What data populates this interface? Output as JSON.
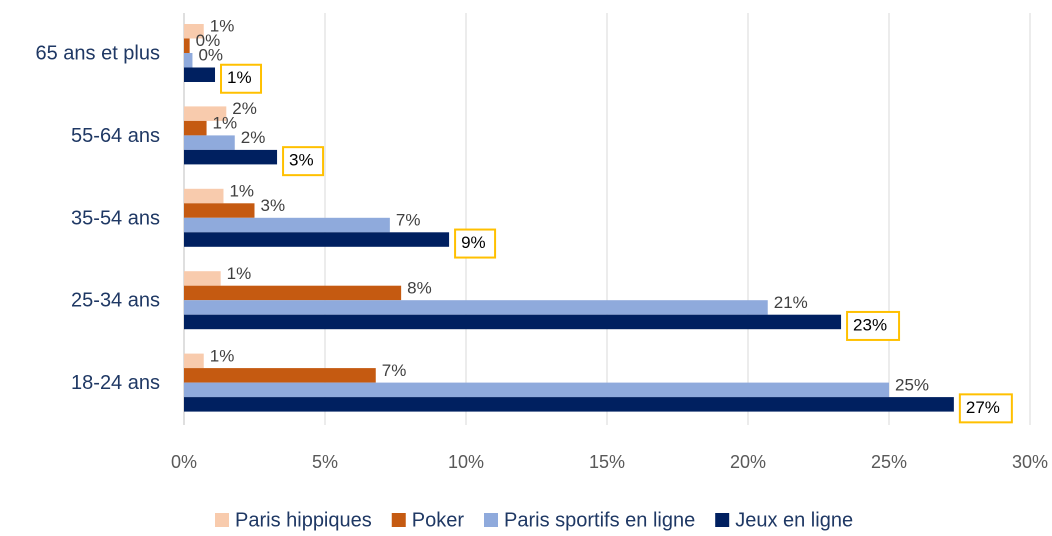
{
  "chart_data": {
    "type": "hbar",
    "categories": [
      "65 ans et plus",
      "55-64 ans",
      "35-54 ans",
      "25-34 ans",
      "18-24 ans"
    ],
    "series": [
      {
        "name": "Paris hippiques",
        "color": "#f8cbad",
        "values": [
          0.7,
          1.5,
          1.4,
          1.3,
          0.7
        ],
        "value_labels": [
          "1%",
          "2%",
          "1%",
          "1%",
          "1%"
        ]
      },
      {
        "name": "Poker",
        "color": "#c55a11",
        "values": [
          0.2,
          0.8,
          2.5,
          7.7,
          6.8
        ],
        "value_labels": [
          "0%",
          "1%",
          "3%",
          "8%",
          "7%"
        ]
      },
      {
        "name": "Paris sportifs en ligne",
        "color": "#8faadc",
        "values": [
          0.3,
          1.8,
          7.3,
          20.7,
          25.0
        ],
        "value_labels": [
          "0%",
          "2%",
          "7%",
          "21%",
          "25%"
        ]
      },
      {
        "name": "Jeux en ligne",
        "color": "#002060",
        "values": [
          1.1,
          3.3,
          9.4,
          23.3,
          27.3
        ],
        "value_labels": [
          "1%",
          "3%",
          "9%",
          "23%",
          "27%"
        ]
      }
    ],
    "xlim": [
      0,
      30
    ],
    "xticks": [
      {
        "value": 0,
        "label": "0%"
      },
      {
        "value": 5,
        "label": "5%"
      },
      {
        "value": 10,
        "label": "10%"
      },
      {
        "value": 15,
        "label": "15%"
      },
      {
        "value": 20,
        "label": "20%"
      },
      {
        "value": 25,
        "label": "25%"
      },
      {
        "value": 30,
        "label": "30%"
      }
    ],
    "grid": true,
    "legend": "bottom",
    "highlight_series": "Jeux en ligne",
    "highlight_color": "#ffc000"
  }
}
